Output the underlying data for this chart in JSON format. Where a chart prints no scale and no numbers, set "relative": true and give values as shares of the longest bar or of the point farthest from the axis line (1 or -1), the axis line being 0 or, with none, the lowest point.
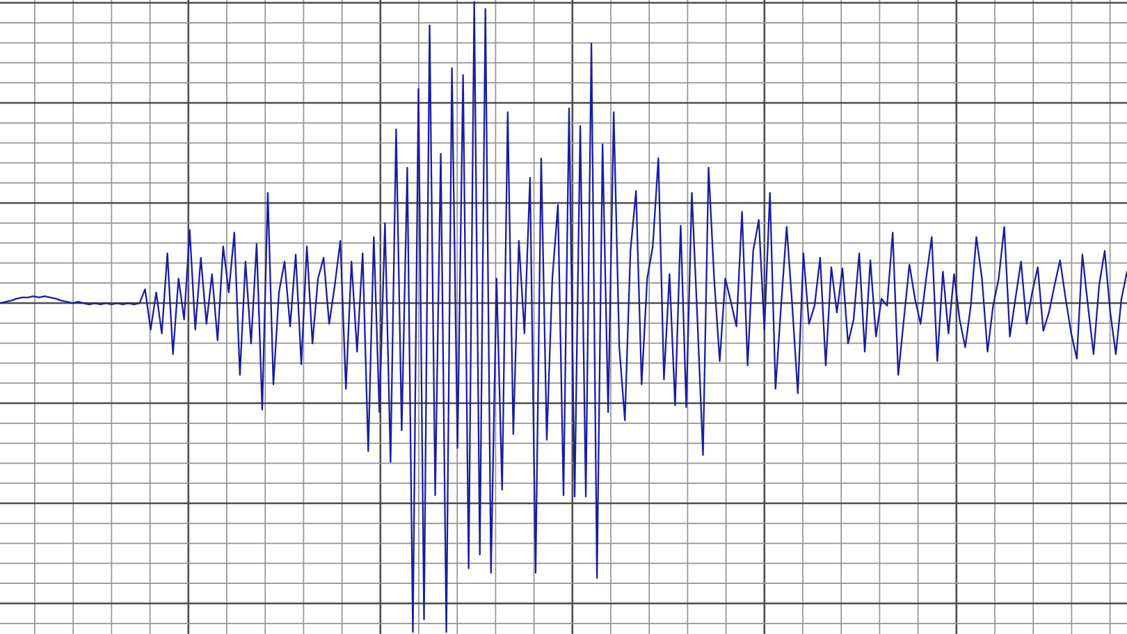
{
  "chart_data": {
    "type": "line",
    "relative": true,
    "grid": true,
    "marker": "none",
    "line_style": "solid",
    "color": "#1c1ca0",
    "categories": [
      null,
      null,
      null,
      null,
      null,
      null,
      null,
      null,
      null,
      null,
      null,
      null,
      null,
      null,
      null,
      null,
      null,
      null,
      null,
      null,
      null,
      null,
      null,
      null,
      null,
      null,
      null,
      null,
      null,
      null,
      null,
      null,
      null,
      null,
      null,
      null,
      null,
      null,
      null,
      null,
      null,
      null,
      null,
      null,
      null,
      null,
      null,
      null,
      null,
      null,
      null,
      null,
      null,
      null,
      null,
      null,
      null,
      null,
      null,
      null,
      null,
      null,
      null,
      null,
      null,
      null,
      null,
      null,
      null,
      null,
      null,
      null,
      null,
      null,
      null,
      null,
      null,
      null,
      null,
      null,
      null,
      null,
      null,
      null,
      null,
      null,
      null,
      null,
      null,
      null,
      null,
      null,
      null,
      null,
      null,
      null,
      null,
      null,
      null,
      null,
      null,
      null,
      null,
      null,
      null,
      null,
      null,
      null,
      null,
      null,
      null,
      null,
      null,
      null,
      null,
      null,
      null,
      null,
      null,
      null,
      null,
      null,
      null,
      null,
      null,
      null,
      null,
      null,
      null,
      null,
      null,
      null,
      null,
      null,
      null,
      null,
      null,
      null,
      null,
      null,
      null,
      null,
      null,
      null,
      null,
      null,
      null,
      null,
      null,
      null,
      null,
      null,
      null,
      null,
      null,
      null,
      null,
      null,
      null,
      null,
      null,
      null,
      null,
      null,
      null,
      null,
      null,
      null,
      null,
      null,
      null,
      null,
      null,
      null,
      null,
      null,
      null,
      null,
      null,
      null,
      null,
      null,
      null,
      null,
      null,
      null,
      null,
      null,
      null,
      null,
      null,
      null,
      null,
      null,
      null,
      null,
      null,
      null,
      null,
      null,
      null,
      null,
      null
    ],
    "values": [
      0.522,
      0.524,
      0.526,
      0.529,
      0.531,
      0.531,
      0.533,
      0.531,
      0.533,
      0.531,
      0.529,
      0.526,
      0.524,
      0.522,
      0.524,
      0.522,
      0.52,
      0.522,
      0.52,
      0.522,
      0.52,
      0.522,
      0.52,
      0.522,
      0.52,
      0.522,
      0.544,
      0.48,
      0.539,
      0.474,
      0.601,
      0.441,
      0.561,
      0.496,
      0.638,
      0.48,
      0.594,
      0.489,
      0.568,
      0.463,
      0.612,
      0.539,
      0.634,
      0.408,
      0.588,
      0.458,
      0.616,
      0.353,
      0.697,
      0.393,
      0.539,
      0.588,
      0.485,
      0.599,
      0.425,
      0.612,
      0.458,
      0.561,
      0.594,
      0.489,
      0.55,
      0.621,
      0.386,
      0.588,
      0.445,
      0.601,
      0.287,
      0.627,
      0.349,
      0.649,
      0.27,
      0.798,
      0.32,
      0.737,
      0,
      0.862,
      0.02,
      0.963,
      0.217,
      0.759,
      0,
      0.895,
      0.292,
      0.884,
      0.101,
      1,
      0.123,
      0.989,
      0.094,
      0.561,
      0.226,
      0.825,
      0.314,
      0.621,
      0.474,
      0.721,
      0.094,
      0.752,
      0.305,
      0.561,
      0.678,
      0.217,
      0.831,
      0.215,
      0.803,
      0.215,
      0.934,
      0.086,
      0.774,
      0.349,
      0.825,
      0.452,
      0.336,
      0.605,
      0.7,
      0.393,
      0.561,
      0.612,
      0.752,
      0.401,
      0.568,
      0.36,
      0.645,
      0.357,
      0.697,
      0.496,
      0.281,
      0.737,
      0.561,
      0.43,
      0.561,
      0.524,
      0.485,
      0.667,
      0.423,
      0.605,
      0.654,
      0.48,
      0.697,
      0.386,
      0.518,
      0.643,
      0.518,
      0.379,
      0.601,
      0.489,
      0.518,
      0.594,
      0.423,
      0.579,
      0.507,
      0.577,
      0.458,
      0.496,
      0.601,
      0.445,
      0.59,
      0.469,
      0.529,
      0.518,
      0.634,
      0.408,
      0.496,
      0.583,
      0.529,
      0.489,
      0.561,
      0.627,
      0.43,
      0.572,
      0.474,
      0.568,
      0.496,
      0.452,
      0.518,
      0.627,
      0.561,
      0.445,
      0.518,
      0.561,
      0.643,
      0.469,
      0.529,
      0.588,
      0.489,
      0.539,
      0.579,
      0.478,
      0.507,
      0.55,
      0.59,
      0.529,
      0.474,
      0.434,
      0.599,
      0.518,
      0.441,
      0.55,
      0.605,
      0.507,
      0.441,
      0.529,
      0.572
    ]
  }
}
